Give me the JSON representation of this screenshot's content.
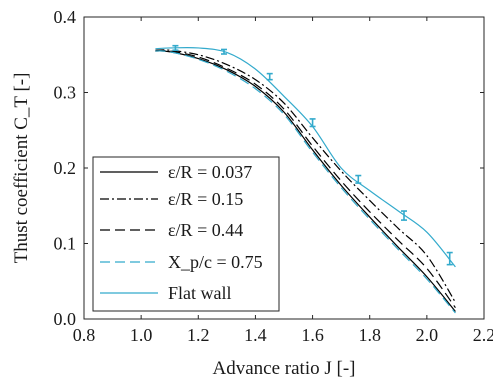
{
  "chart_data": {
    "type": "line",
    "xlabel": "Advance ratio J [-]",
    "ylabel": "Thust coefficient C_T [-]",
    "xlim": [
      0.8,
      2.2
    ],
    "ylim": [
      0.0,
      0.4
    ],
    "x_ticks": [
      "0.8",
      "1.0",
      "1.2",
      "1.4",
      "1.6",
      "1.8",
      "2.0",
      "2.2"
    ],
    "y_ticks": [
      "0.0",
      "0.1",
      "0.2",
      "0.3",
      "0.4"
    ],
    "grid": false,
    "legend_position": "bottom-left",
    "series": [
      {
        "name": "ε/R = 0.037",
        "line_style": "solid",
        "color": "#000000",
        "x": [
          1.05,
          1.1,
          1.2,
          1.3,
          1.4,
          1.5,
          1.6,
          1.7,
          1.8,
          1.9,
          2.0,
          2.1
        ],
        "y": [
          0.355,
          0.354,
          0.345,
          0.33,
          0.308,
          0.274,
          0.224,
          0.177,
          0.135,
          0.095,
          0.056,
          0.01
        ]
      },
      {
        "name": "ε/R = 0.15",
        "line_style": "dashdot",
        "color": "#000000",
        "x": [
          1.05,
          1.1,
          1.2,
          1.3,
          1.4,
          1.5,
          1.6,
          1.7,
          1.8,
          1.9,
          2.0,
          2.1
        ],
        "y": [
          0.356,
          0.356,
          0.35,
          0.337,
          0.317,
          0.286,
          0.24,
          0.196,
          0.157,
          0.12,
          0.084,
          0.022
        ]
      },
      {
        "name": "ε/R = 0.44",
        "line_style": "dashed",
        "color": "#000000",
        "x": [
          1.05,
          1.1,
          1.2,
          1.3,
          1.4,
          1.5,
          1.6,
          1.7,
          1.8,
          1.9,
          2.0,
          2.1
        ],
        "y": [
          0.355,
          0.355,
          0.347,
          0.332,
          0.311,
          0.278,
          0.229,
          0.183,
          0.142,
          0.104,
          0.067,
          0.015
        ]
      },
      {
        "name": "X_p/c = 0.75",
        "line_style": "dashed",
        "color": "#33aacc",
        "x": [
          1.05,
          1.1,
          1.2,
          1.3,
          1.4,
          1.5,
          1.6,
          1.7,
          1.8,
          1.9,
          2.0,
          2.1
        ],
        "y": [
          0.355,
          0.354,
          0.344,
          0.328,
          0.305,
          0.271,
          0.221,
          0.174,
          0.132,
          0.092,
          0.053,
          0.008
        ]
      },
      {
        "name": "Flat wall",
        "line_style": "solid",
        "color": "#33aacc",
        "x": [
          1.05,
          1.1,
          1.2,
          1.3,
          1.4,
          1.5,
          1.6,
          1.7,
          1.8,
          1.9,
          2.0,
          2.1
        ],
        "y": [
          0.358,
          0.359,
          0.359,
          0.353,
          0.331,
          0.295,
          0.255,
          0.2,
          0.17,
          0.143,
          0.115,
          0.069
        ]
      }
    ],
    "error_bars": {
      "color": "#33aacc",
      "x": [
        1.12,
        1.29,
        1.45,
        1.6,
        1.76,
        1.92,
        2.08
      ],
      "y": [
        0.359,
        0.354,
        0.321,
        0.26,
        0.185,
        0.137,
        0.08
      ],
      "err": [
        0.003,
        0.003,
        0.004,
        0.005,
        0.005,
        0.006,
        0.008
      ]
    }
  }
}
